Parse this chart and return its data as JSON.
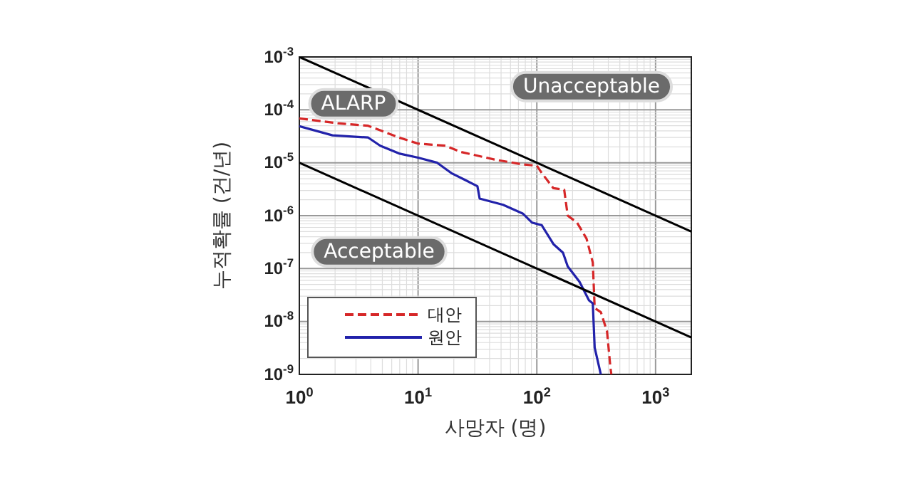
{
  "chart_data": {
    "type": "line",
    "xlabel": "사망자 (명)",
    "ylabel": "누적확률 (건/년)",
    "log": "xy",
    "grid": true,
    "legend": "bottom left",
    "xlim": [
      1,
      2000
    ],
    "ylim": [
      1e-09,
      0.001
    ],
    "xticks": [
      {
        "value": 1,
        "label": "10$^{0}$"
      },
      {
        "value": 10,
        "label": "10$^{1}$"
      },
      {
        "value": 100,
        "label": "10$^{2}$"
      },
      {
        "value": 1000,
        "label": "10$^{3}$"
      }
    ],
    "yticks": [
      {
        "value": 1e-09,
        "label": "10$^{-9}$"
      },
      {
        "value": 1e-08,
        "label": "10$^{-8}$"
      },
      {
        "value": 1e-07,
        "label": "10$^{-7}$"
      },
      {
        "value": 1e-06,
        "label": "10$^{-6}$"
      },
      {
        "value": 1e-05,
        "label": "10$^{-5}$"
      },
      {
        "value": 0.0001,
        "label": "10$^{-4}$"
      },
      {
        "value": 0.001,
        "label": "10$^{-3}$"
      }
    ],
    "series": [
      {
        "name": "대안",
        "color": "#d62728",
        "line_style": "dashed",
        "x": [
          1,
          2.1,
          3.8,
          6.9,
          10,
          17,
          23,
          44,
          76,
          100,
          110,
          138,
          170,
          182,
          218,
          262,
          296,
          307,
          346,
          390,
          416,
          424
        ],
        "values": [
          6.9e-05,
          5.6e-05,
          5e-05,
          3e-05,
          2.3e-05,
          2.1e-05,
          1.6e-05,
          1.15e-05,
          9.3e-06,
          8.8e-06,
          6.4e-06,
          3.3e-06,
          3.1e-06,
          1e-06,
          7.4e-07,
          3.7e-07,
          1.3e-07,
          1.8e-08,
          1.5e-08,
          6.5e-09,
          1.4e-09,
          1e-09
        ]
      },
      {
        "name": "원안",
        "color": "#2222aa",
        "line_style": "solid",
        "x": [
          1,
          1.9,
          3.8,
          4.8,
          6.9,
          10,
          14.5,
          19,
          25,
          31.6,
          33,
          52,
          76,
          91,
          110,
          138,
          166,
          182,
          229,
          275,
          296,
          307,
          346
        ],
        "values": [
          4.9e-05,
          3.3e-05,
          3e-05,
          2.1e-05,
          1.5e-05,
          1.25e-05,
          1e-05,
          6.4e-06,
          4.7e-06,
          3.6e-06,
          2.1e-06,
          1.6e-06,
          1.1e-06,
          7.4e-07,
          6.6e-07,
          2.9e-07,
          2e-07,
          1.1e-07,
          5.6e-08,
          2.5e-08,
          2.2e-08,
          3.2e-09,
          1e-09
        ]
      },
      {
        "color": "#000000",
        "line_style": "solid",
        "x": [
          1,
          2000
        ],
        "values": [
          0.001,
          5e-07
        ]
      },
      {
        "color": "#000000",
        "line_style": "solid",
        "x": [
          1,
          2000
        ],
        "values": [
          1e-05,
          5e-09
        ]
      }
    ],
    "annotations": [
      "ALARP",
      "Unacceptable",
      "Acceptable"
    ]
  }
}
